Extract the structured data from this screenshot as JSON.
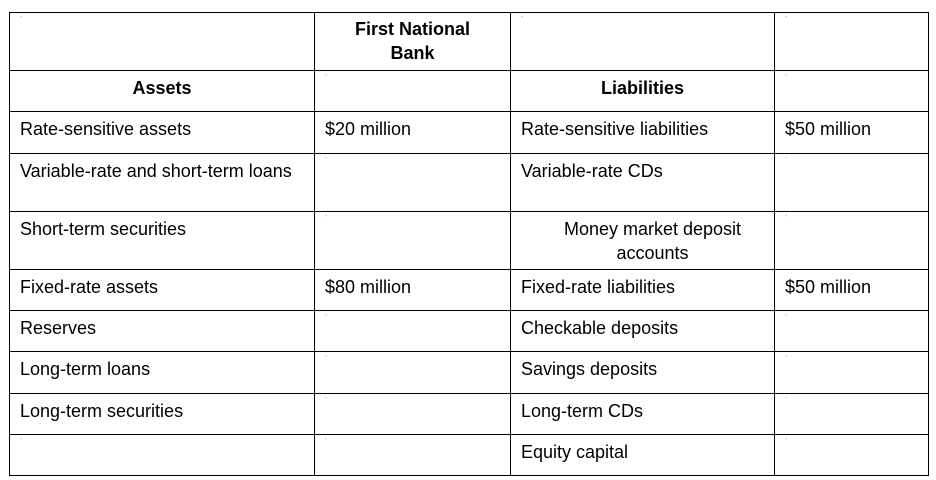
{
  "header": {
    "bank_name": "First National Bank"
  },
  "columns": {
    "assets": "Assets",
    "liabilities": "Liabilities"
  },
  "rows": [
    {
      "asset": "Rate-sensitive assets",
      "asset_value": "$20 million",
      "liability": "Rate-sensitive liabilities",
      "liability_value": "$50 million"
    },
    {
      "asset": "Variable-rate and short-term loans",
      "asset_value": "",
      "liability": "Variable-rate CDs",
      "liability_value": ""
    },
    {
      "asset": "Short-term securities",
      "asset_value": "",
      "liability": "Money market deposit accounts",
      "liability_value": ""
    },
    {
      "asset": "Fixed-rate assets",
      "asset_value": "$80 million",
      "liability": "Fixed-rate liabilities",
      "liability_value": "$50 million"
    },
    {
      "asset": "Reserves",
      "asset_value": "",
      "liability": "Checkable deposits",
      "liability_value": ""
    },
    {
      "asset": "Long-term loans",
      "asset_value": "",
      "liability": "Savings deposits",
      "liability_value": ""
    },
    {
      "asset": "Long-term securities",
      "asset_value": "",
      "liability": "Long-term CDs",
      "liability_value": ""
    },
    {
      "asset": "",
      "asset_value": "",
      "liability": "Equity capital",
      "liability_value": ""
    }
  ],
  "cell_marker": "-"
}
